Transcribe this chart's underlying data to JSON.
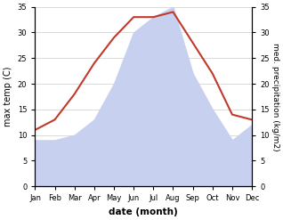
{
  "months": [
    "Jan",
    "Feb",
    "Mar",
    "Apr",
    "May",
    "Jun",
    "Jul",
    "Aug",
    "Sep",
    "Oct",
    "Nov",
    "Dec"
  ],
  "temperature": [
    11,
    13,
    18,
    24,
    29,
    33,
    33,
    34,
    28,
    22,
    14,
    13
  ],
  "precipitation": [
    9,
    9,
    10,
    13,
    20,
    30,
    33,
    35,
    22,
    15,
    9,
    12
  ],
  "temp_color": "#c0392b",
  "precip_fill_color": "#c8d0f0",
  "ylim_left": [
    0,
    35
  ],
  "ylim_right": [
    0,
    35
  ],
  "yticks_left": [
    0,
    5,
    10,
    15,
    20,
    25,
    30,
    35
  ],
  "yticks_right": [
    0,
    5,
    10,
    15,
    20,
    25,
    30,
    35
  ],
  "xlabel": "date (month)",
  "ylabel_left": "max temp (C)",
  "ylabel_right": "med. precipitation (kg/m2)",
  "bg_color": "#ffffff",
  "grid_color": "#cccccc"
}
